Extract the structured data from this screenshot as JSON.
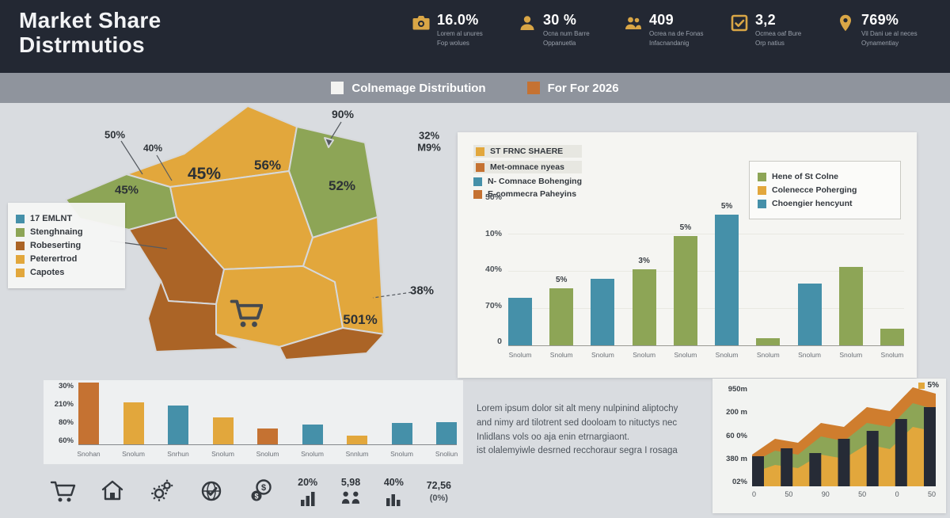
{
  "colors": {
    "navy": "#232833",
    "graybar": "#8f949d",
    "bg": "#d9dce0",
    "panel": "#f5f5f2",
    "yellow": "#e2a73c",
    "orange": "#c57232",
    "area-orange": "#cf7d2e",
    "brown": "#ab6426",
    "green": "#8da556",
    "teal": "#4590a9",
    "gold": "#d9a646",
    "dark": "#2e3338"
  },
  "header": {
    "title_line1": "Market Share",
    "title_line2": "Distrmutios",
    "stats": [
      {
        "icon": "camera-icon",
        "value": "16.0%",
        "label1": "Lorem al unures",
        "label2": "Fop wolues"
      },
      {
        "icon": "person-icon",
        "value": "30 %",
        "label1": "Ocna num Barre",
        "label2": "Oppanuetla"
      },
      {
        "icon": "people-icon",
        "value": "409",
        "label1": "Ocrea na de Fonas",
        "label2": "Infacnandanig"
      },
      {
        "icon": "check-square-icon",
        "value": "3,2",
        "label1": "Ocmea oaf Bure",
        "label2": "Orp natius"
      },
      {
        "icon": "location-pin-icon",
        "value": "769%",
        "label1": "Vil Dani ue al neces",
        "label2": "Oynamentiay"
      }
    ]
  },
  "subheader": {
    "legend": [
      {
        "color": "white",
        "label": "Colnemage Distribution"
      },
      {
        "color": "orange",
        "label": "For For 2026"
      }
    ]
  },
  "map": {
    "labels": [
      "50%",
      "40%",
      "45%",
      "45%",
      "56%",
      "90%",
      "32%",
      "M9%",
      "52%",
      "38%",
      "501%"
    ],
    "legend": [
      {
        "color": "teal",
        "label": "17 EMLNT"
      },
      {
        "color": "green",
        "label": "Stenghnaing"
      },
      {
        "color": "brown",
        "label": "Robeserting"
      },
      {
        "color": "yellow",
        "label": "Peterertrod"
      },
      {
        "color": "yellow",
        "label": "Capotes"
      }
    ]
  },
  "lorem": {
    "lines": [
      "Lorem ipsum dolor sit alt meny nulpinind aliptochy",
      "and nimy ard tilotrent sed dooloam to nituctys nec",
      "Inlidlans vols oo aja enin etrnargiaont.",
      "ist olalemyiwle desrned recchoraur segra I rosaga"
    ]
  },
  "bottom_icons": {
    "minibar1_value": "20%",
    "people_value": "5,98",
    "minibar2_value": "40%",
    "big_value": "72,56",
    "big_value_sub": "(0%)"
  },
  "chart_data": [
    {
      "type": "bar",
      "title": "ST FRNC SHAERE",
      "legend_left": [
        {
          "color": "yellow",
          "label": "ST FRNC SHAERE"
        },
        {
          "color": "orange",
          "label": "Met-omnace nyeas"
        },
        {
          "color": "teal",
          "label": "N- Comnace Bohenging"
        },
        {
          "color": "orange",
          "label": "E-commecra Paheyins"
        }
      ],
      "legend_right": [
        {
          "color": "green",
          "label": "Hene of St Colne"
        },
        {
          "color": "yellow",
          "label": "Colenecce Poherging"
        },
        {
          "color": "teal",
          "label": "Choengier hencyunt"
        }
      ],
      "categories": [
        "Snolum",
        "Snolum",
        "Snolum",
        "Snolum",
        "Snolum",
        "Snolum",
        "Snolum",
        "Snolum",
        "Snolum",
        "Snolum"
      ],
      "values": [
        20,
        24,
        28,
        32,
        46,
        55,
        3,
        26,
        33,
        7
      ],
      "unit": "%",
      "bar_colors": [
        "teal",
        "green",
        "teal",
        "green",
        "green",
        "teal",
        "green",
        "teal",
        "green",
        "green"
      ],
      "bar_labels": [
        "",
        "5%",
        "",
        "3%",
        "5%",
        "5%",
        "",
        "",
        "",
        ""
      ],
      "y_ticks": [
        "50%",
        "10%",
        "40%",
        "70%",
        "0"
      ],
      "ylim": [
        0,
        60
      ],
      "scale": 3
    },
    {
      "type": "bar",
      "title": "",
      "categories": [
        "Snohan",
        "Snolum",
        "Snrhun",
        "Snolum",
        "Snolum",
        "Snolum",
        "Snnlum",
        "Snolum",
        "Snoliun"
      ],
      "values": [
        100,
        68,
        63,
        43,
        25,
        32,
        14,
        34,
        36
      ],
      "bar_colors": [
        "orange",
        "yellow",
        "teal",
        "yellow",
        "orange",
        "teal",
        "yellow",
        "teal",
        "teal"
      ],
      "bar_labels": [
        "",
        "",
        "",
        "",
        "",
        "",
        "",
        "",
        ""
      ],
      "y_ticks": [
        "30%",
        "210%",
        "80%",
        "60%"
      ],
      "ylim": [
        0,
        100
      ],
      "scale": 0.78
    },
    {
      "type": "area",
      "title": "",
      "y_ticks": [
        "950m",
        "200 m",
        "60 0%",
        "380 m",
        "02%"
      ],
      "x_ticks": [
        "0",
        "50",
        "90",
        "50",
        "0",
        "50"
      ],
      "corner_label": "5%",
      "series": [
        {
          "name": "orange",
          "values": [
            40,
            60,
            55,
            80,
            75,
            100,
            95,
            125,
            117
          ]
        },
        {
          "name": "green",
          "values": [
            30,
            45,
            40,
            63,
            57,
            80,
            75,
            105,
            97
          ]
        },
        {
          "name": "yellow",
          "values": [
            17,
            27,
            23,
            40,
            35,
            53,
            47,
            75,
            69
          ]
        }
      ],
      "bars": {
        "name": "navy",
        "values": [
          38,
          48,
          42,
          60,
          70,
          85,
          100
        ]
      }
    }
  ]
}
